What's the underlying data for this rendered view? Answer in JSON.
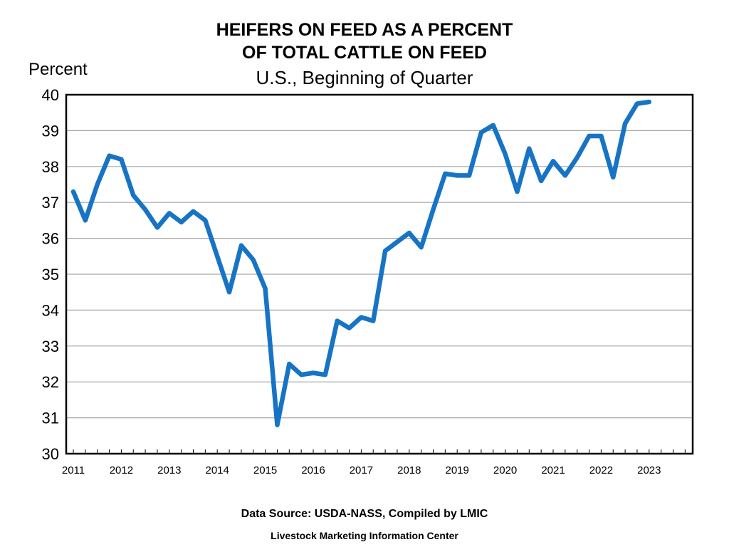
{
  "colors": {
    "line": "#1774c5",
    "grid": "#a6a6a6",
    "frame": "#000000"
  },
  "chart_data": {
    "type": "line",
    "title_lines": [
      "HEIFERS ON FEED AS A PERCENT",
      "OF TOTAL CATTLE ON FEED"
    ],
    "subtitle": "U.S., Beginning of Quarter",
    "ylabel": "Percent",
    "ylim": [
      30,
      40
    ],
    "y_ticks": [
      "30",
      "31",
      "32",
      "33",
      "34",
      "35",
      "36",
      "37",
      "38",
      "39",
      "40"
    ],
    "x_ticks": [
      "2011",
      "2012",
      "2013",
      "2014",
      "2015",
      "2016",
      "2017",
      "2018",
      "2019",
      "2020",
      "2021",
      "2022",
      "2023"
    ],
    "grid": true,
    "legend": "none",
    "series": [
      {
        "values": [
          37.3,
          36.5,
          37.5,
          38.3,
          38.2,
          37.2,
          36.8,
          36.3,
          36.7,
          36.45,
          36.75,
          36.5,
          35.5,
          34.5,
          35.8,
          35.4,
          34.6,
          30.8,
          32.5,
          32.2,
          32.25,
          32.2,
          33.7,
          33.5,
          33.8,
          33.7,
          35.65,
          35.9,
          36.15,
          35.75,
          36.8,
          37.8,
          37.75,
          37.75,
          38.95,
          39.15,
          38.35,
          37.3,
          38.5,
          37.6,
          38.15,
          37.75,
          38.25,
          38.85,
          38.85,
          37.7,
          39.2,
          39.75,
          39.8
        ]
      }
    ]
  },
  "footer": {
    "source": "Data Source:  USDA-NASS, Compiled  by LMIC",
    "org": "Livestock Marketing Information Center"
  }
}
